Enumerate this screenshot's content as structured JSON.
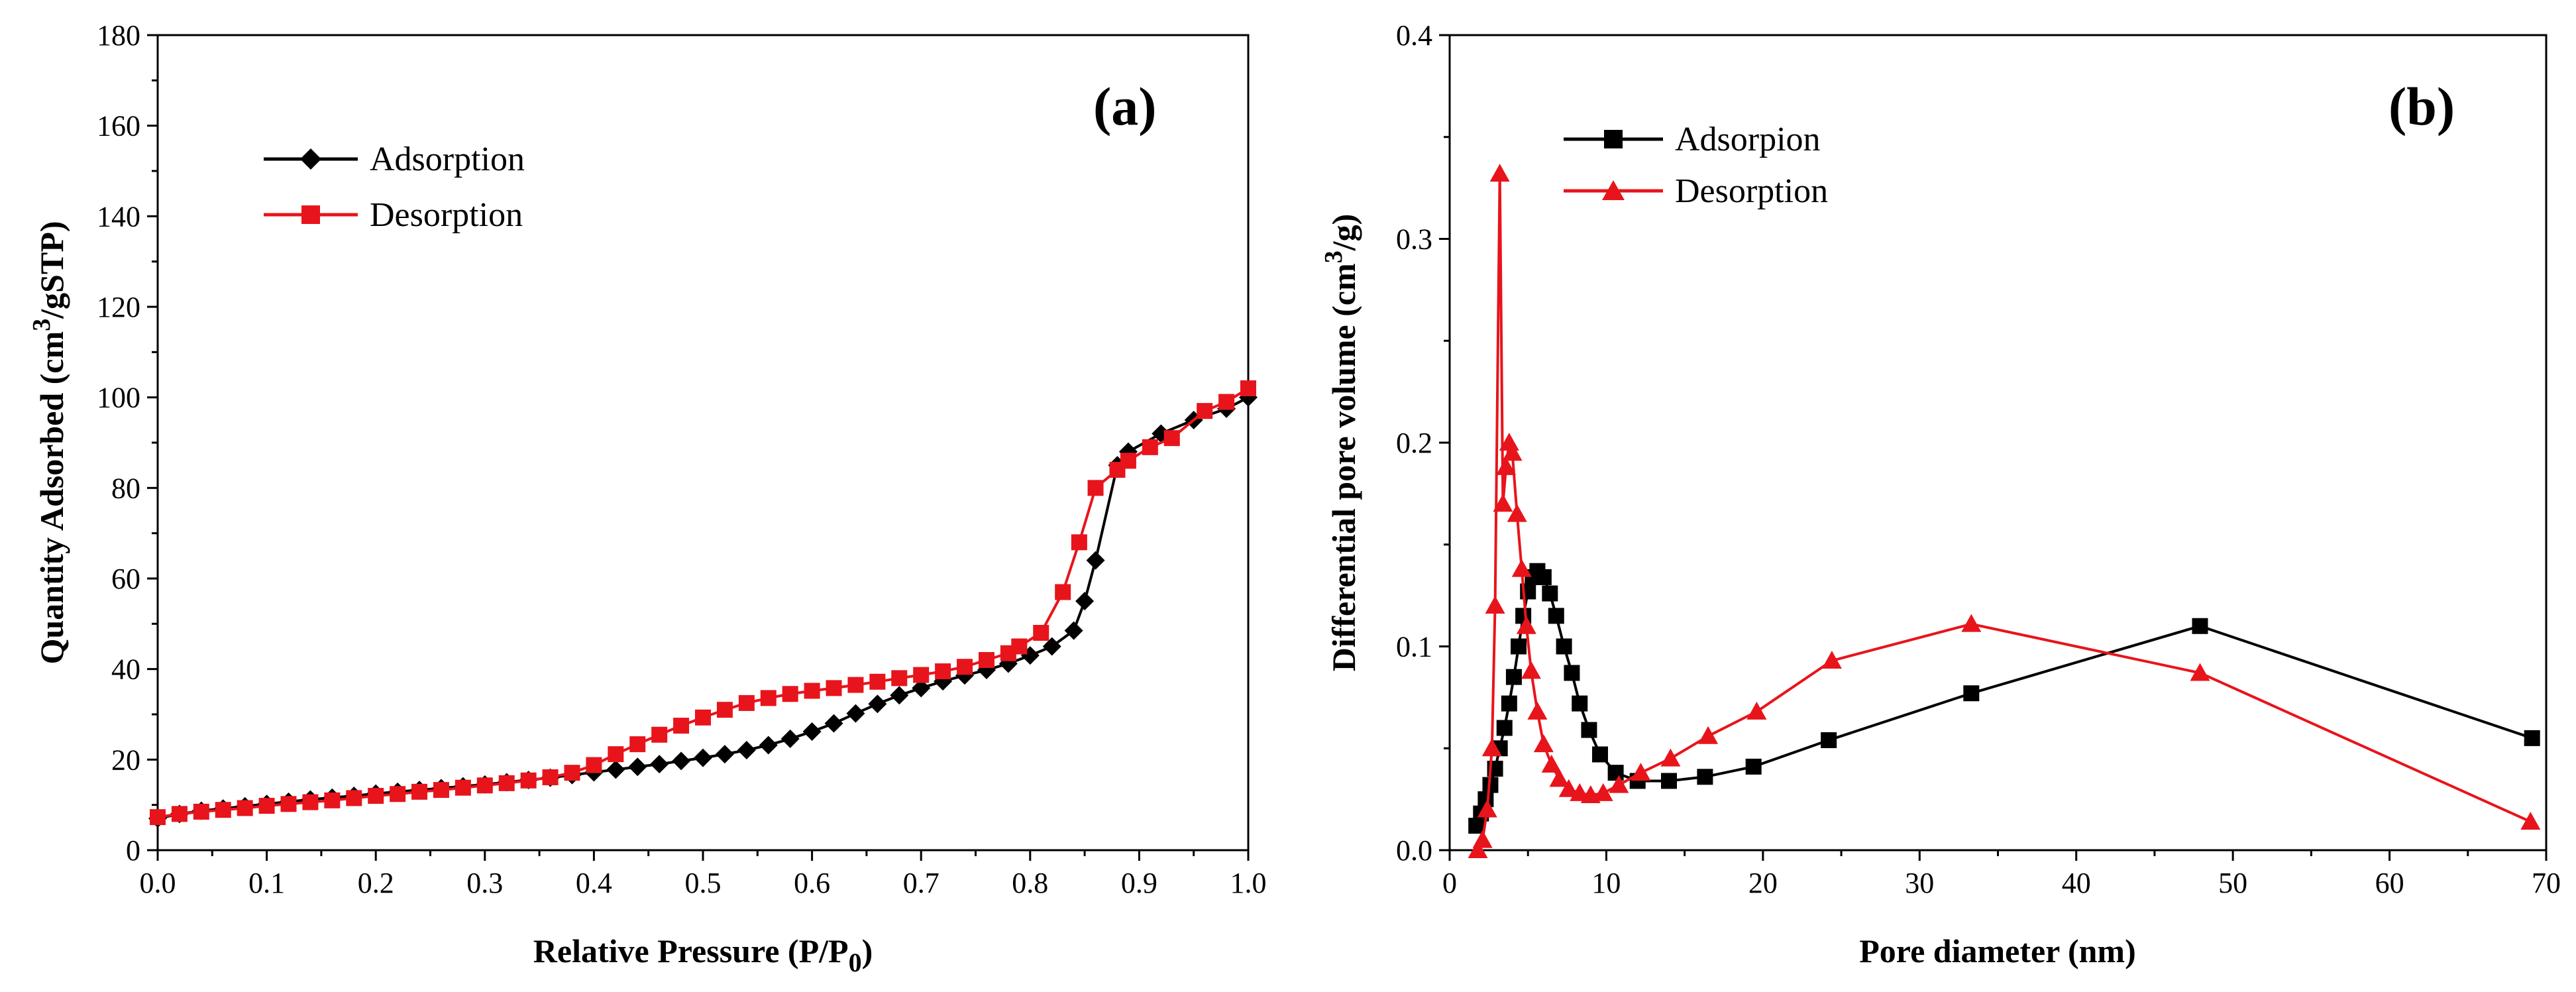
{
  "colors": {
    "adsorption": "#000000",
    "desorption": "#e8141b",
    "axis": "#000000"
  },
  "chart_data": [
    {
      "type": "line",
      "panel_label": "(a)",
      "title": "",
      "xlabel": "Relative Pressure (P/P",
      "xlabel_sub": "0",
      "xlabel_end": ")",
      "ylabel_pre": "Quantity Adsorbed (cm",
      "ylabel_sup": "3",
      "ylabel_post": "/gSTP)",
      "xlim": [
        0,
        1.0
      ],
      "ylim": [
        0,
        180
      ],
      "xticks": [
        "0.0",
        "0.1",
        "0.2",
        "0.3",
        "0.4",
        "0.5",
        "0.6",
        "0.7",
        "0.8",
        "0.9",
        "1.0"
      ],
      "yticks": [
        "0",
        "20",
        "40",
        "60",
        "80",
        "100",
        "120",
        "140",
        "160",
        "180"
      ],
      "legend_position": "top-left",
      "series": [
        {
          "name": "Adsorption",
          "marker": "diamond",
          "color": "#000000",
          "points": [
            [
              0.0,
              7
            ],
            [
              0.02,
              8
            ],
            [
              0.04,
              8.7
            ],
            [
              0.06,
              9.2
            ],
            [
              0.08,
              9.7
            ],
            [
              0.1,
              10.2
            ],
            [
              0.12,
              10.7
            ],
            [
              0.14,
              11.2
            ],
            [
              0.16,
              11.6
            ],
            [
              0.18,
              12
            ],
            [
              0.2,
              12.5
            ],
            [
              0.22,
              12.9
            ],
            [
              0.24,
              13.3
            ],
            [
              0.26,
              13.7
            ],
            [
              0.28,
              14.1
            ],
            [
              0.3,
              14.5
            ],
            [
              0.32,
              15
            ],
            [
              0.34,
              15.5
            ],
            [
              0.36,
              16
            ],
            [
              0.38,
              16.6
            ],
            [
              0.4,
              17.2
            ],
            [
              0.42,
              17.8
            ],
            [
              0.44,
              18.4
            ],
            [
              0.46,
              19
            ],
            [
              0.48,
              19.7
            ],
            [
              0.5,
              20.4
            ],
            [
              0.52,
              21.2
            ],
            [
              0.54,
              22.1
            ],
            [
              0.56,
              23.2
            ],
            [
              0.58,
              24.6
            ],
            [
              0.6,
              26.2
            ],
            [
              0.62,
              28
            ],
            [
              0.64,
              30.2
            ],
            [
              0.66,
              32.3
            ],
            [
              0.68,
              34.2
            ],
            [
              0.7,
              35.8
            ],
            [
              0.72,
              37.3
            ],
            [
              0.74,
              38.6
            ],
            [
              0.76,
              39.8
            ],
            [
              0.78,
              41.2
            ],
            [
              0.8,
              43
            ],
            [
              0.82,
              45
            ],
            [
              0.84,
              48.5
            ],
            [
              0.85,
              55
            ],
            [
              0.86,
              64
            ],
            [
              0.88,
              85
            ],
            [
              0.89,
              88
            ],
            [
              0.92,
              92
            ],
            [
              0.95,
              95
            ],
            [
              0.98,
              97.5
            ],
            [
              1.0,
              100
            ]
          ]
        },
        {
          "name": "Desorption",
          "marker": "square",
          "color": "#e8141b",
          "points": [
            [
              1.0,
              102
            ],
            [
              0.98,
              99
            ],
            [
              0.96,
              97
            ],
            [
              0.93,
              91
            ],
            [
              0.91,
              89
            ],
            [
              0.89,
              86
            ],
            [
              0.88,
              84
            ],
            [
              0.86,
              80
            ],
            [
              0.845,
              68
            ],
            [
              0.83,
              57
            ],
            [
              0.81,
              48
            ],
            [
              0.79,
              45
            ],
            [
              0.78,
              43.5
            ],
            [
              0.76,
              42
            ],
            [
              0.74,
              40.5
            ],
            [
              0.72,
              39.5
            ],
            [
              0.7,
              38.7
            ],
            [
              0.68,
              38
            ],
            [
              0.66,
              37.2
            ],
            [
              0.64,
              36.5
            ],
            [
              0.62,
              35.8
            ],
            [
              0.6,
              35.2
            ],
            [
              0.58,
              34.5
            ],
            [
              0.56,
              33.6
            ],
            [
              0.54,
              32.5
            ],
            [
              0.52,
              31
            ],
            [
              0.5,
              29.3
            ],
            [
              0.48,
              27.5
            ],
            [
              0.46,
              25.5
            ],
            [
              0.44,
              23.4
            ],
            [
              0.42,
              21.2
            ],
            [
              0.4,
              18.8
            ],
            [
              0.38,
              17.1
            ],
            [
              0.36,
              16.1
            ],
            [
              0.34,
              15.4
            ],
            [
              0.32,
              14.8
            ],
            [
              0.3,
              14.3
            ],
            [
              0.28,
              13.8
            ],
            [
              0.26,
              13.3
            ],
            [
              0.24,
              12.9
            ],
            [
              0.22,
              12.4
            ],
            [
              0.2,
              12
            ],
            [
              0.18,
              11.5
            ],
            [
              0.16,
              11
            ],
            [
              0.14,
              10.6
            ],
            [
              0.12,
              10.2
            ],
            [
              0.1,
              9.8
            ],
            [
              0.08,
              9.3
            ],
            [
              0.06,
              8.9
            ],
            [
              0.04,
              8.5
            ],
            [
              0.02,
              8
            ],
            [
              0.0,
              7.3
            ]
          ]
        }
      ]
    },
    {
      "type": "line",
      "panel_label": "(b)",
      "title": "",
      "xlabel": "Pore diameter (nm)",
      "ylabel_pre": "Differential pore volume (cm",
      "ylabel_sup": "3",
      "ylabel_post": "/g)",
      "xlim": [
        0,
        70
      ],
      "ylim": [
        0,
        0.4
      ],
      "xticks": [
        "0",
        "10",
        "20",
        "30",
        "40",
        "50",
        "60",
        "70"
      ],
      "yticks": [
        "0.0",
        "0.1",
        "0.2",
        "0.3",
        "0.4"
      ],
      "legend_position": "top-left",
      "series": [
        {
          "name": "Adsorpion",
          "marker": "square",
          "color": "#000000",
          "points": [
            [
              1.7,
              0.012
            ],
            [
              2.0,
              0.018
            ],
            [
              2.3,
              0.025
            ],
            [
              2.6,
              0.032
            ],
            [
              2.9,
              0.04
            ],
            [
              3.2,
              0.05
            ],
            [
              3.5,
              0.06
            ],
            [
              3.8,
              0.072
            ],
            [
              4.1,
              0.085
            ],
            [
              4.4,
              0.1
            ],
            [
              4.7,
              0.115
            ],
            [
              5.0,
              0.127
            ],
            [
              5.3,
              0.134
            ],
            [
              5.6,
              0.137
            ],
            [
              6.0,
              0.134
            ],
            [
              6.4,
              0.126
            ],
            [
              6.8,
              0.115
            ],
            [
              7.3,
              0.1
            ],
            [
              7.8,
              0.087
            ],
            [
              8.3,
              0.072
            ],
            [
              8.9,
              0.059
            ],
            [
              9.6,
              0.047
            ],
            [
              10.6,
              0.038
            ],
            [
              12.0,
              0.034
            ],
            [
              14.0,
              0.034
            ],
            [
              16.3,
              0.036
            ],
            [
              19.4,
              0.041
            ],
            [
              24.2,
              0.054
            ],
            [
              33.3,
              0.077
            ],
            [
              47.9,
              0.11
            ],
            [
              69.1,
              0.055
            ]
          ]
        },
        {
          "name": "Desorption",
          "marker": "triangle",
          "color": "#e8141b",
          "points": [
            [
              1.8,
              0.0
            ],
            [
              2.1,
              0.005
            ],
            [
              2.4,
              0.02
            ],
            [
              2.7,
              0.05
            ],
            [
              2.9,
              0.12
            ],
            [
              3.2,
              0.332
            ],
            [
              3.4,
              0.17
            ],
            [
              3.6,
              0.188
            ],
            [
              3.8,
              0.2
            ],
            [
              4.0,
              0.195
            ],
            [
              4.3,
              0.165
            ],
            [
              4.6,
              0.138
            ],
            [
              4.9,
              0.11
            ],
            [
              5.2,
              0.088
            ],
            [
              5.6,
              0.068
            ],
            [
              6.0,
              0.052
            ],
            [
              6.5,
              0.042
            ],
            [
              7.0,
              0.035
            ],
            [
              7.6,
              0.03
            ],
            [
              8.3,
              0.028
            ],
            [
              9.0,
              0.027
            ],
            [
              9.8,
              0.028
            ],
            [
              10.8,
              0.032
            ],
            [
              12.2,
              0.038
            ],
            [
              14.1,
              0.045
            ],
            [
              16.5,
              0.056
            ],
            [
              19.6,
              0.068
            ],
            [
              24.4,
              0.093
            ],
            [
              33.3,
              0.111
            ],
            [
              47.9,
              0.087
            ],
            [
              69.0,
              0.014
            ]
          ]
        }
      ]
    }
  ]
}
